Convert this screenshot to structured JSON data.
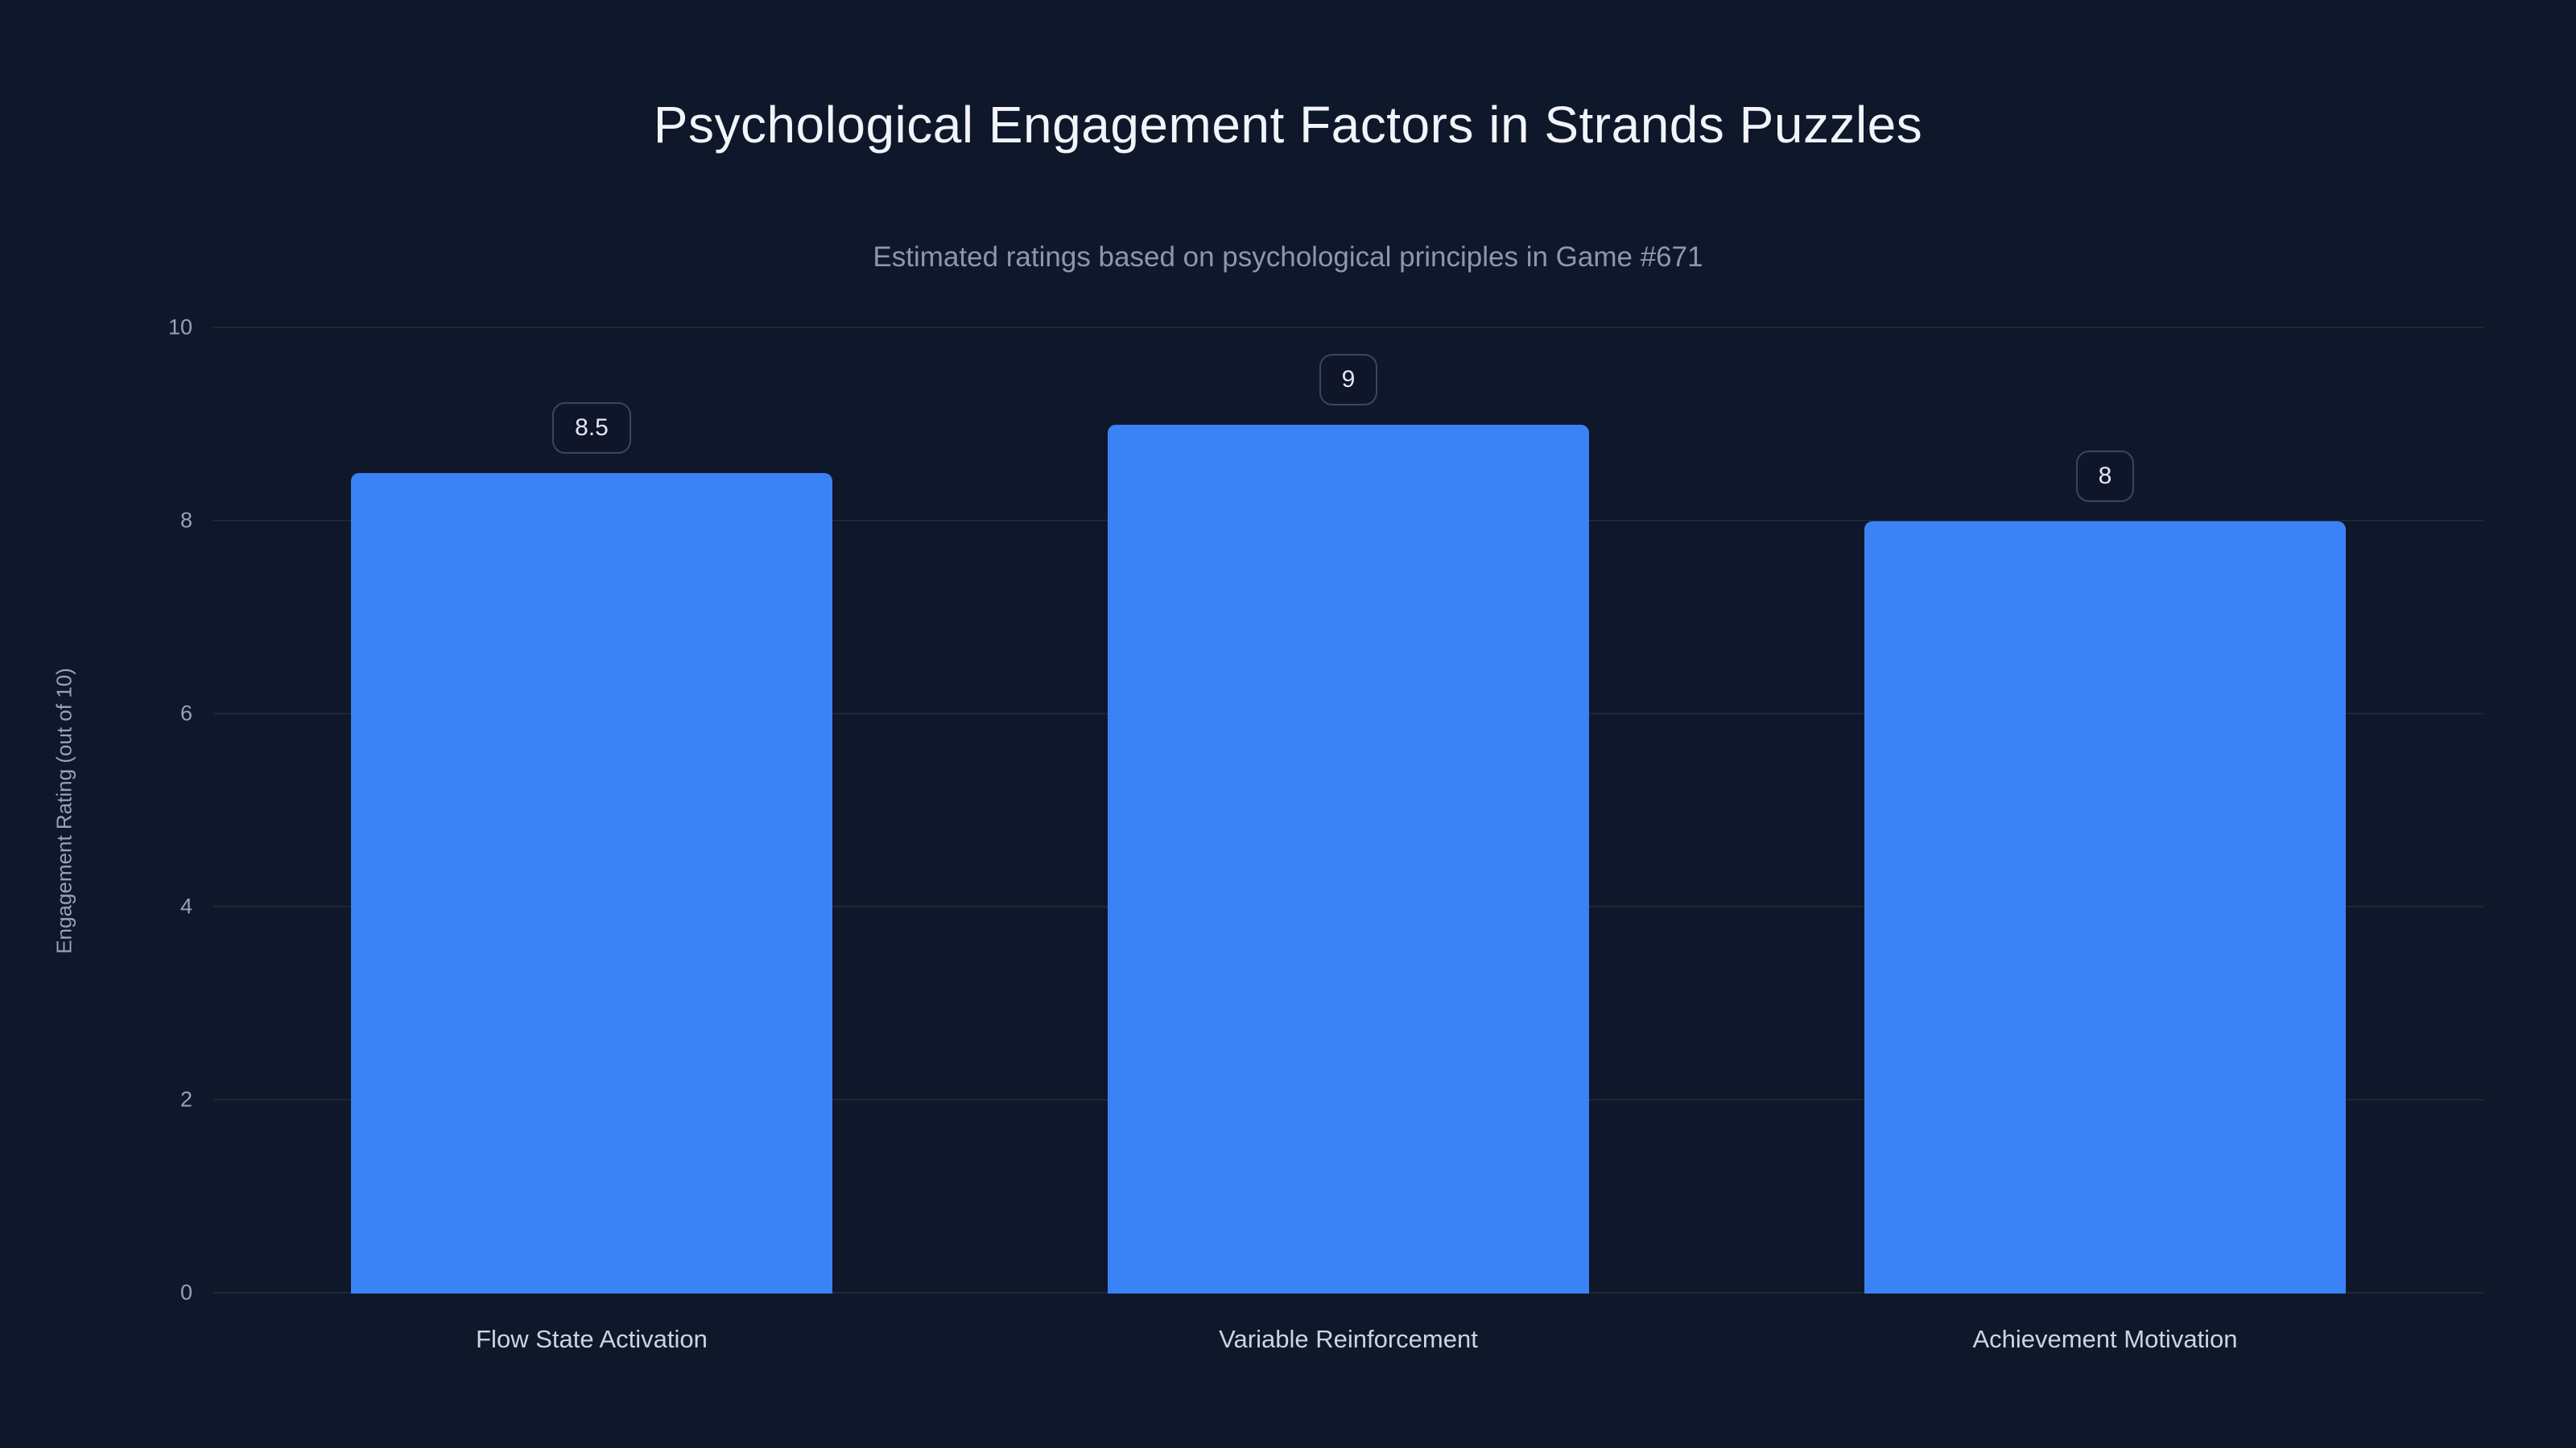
{
  "chart_data": {
    "type": "bar",
    "title": "Psychological Engagement Factors in Strands Puzzles",
    "subtitle": "Estimated ratings based on psychological principles in Game #671",
    "categories": [
      "Flow State Activation",
      "Variable Reinforcement",
      "Achievement Motivation"
    ],
    "values": [
      8.5,
      9,
      8
    ],
    "value_labels": [
      "8.5",
      "9",
      "8"
    ],
    "xlabel": "",
    "ylabel": "Engagement Rating (out of 10)",
    "ylim": [
      0,
      10
    ],
    "yticks": [
      0,
      2,
      4,
      6,
      8,
      10
    ],
    "grid": true,
    "legend": false,
    "colors": {
      "background": "#0f172a",
      "bar": "#3b82f6",
      "title": "#f1f5f9",
      "subtitle": "#8b98ab",
      "tick_label": "#94a3b8",
      "gridline": "#1d2839",
      "badge_border": "#3b465a",
      "badge_text": "#e2e8f0",
      "category_label": "#cbd5e1"
    }
  }
}
